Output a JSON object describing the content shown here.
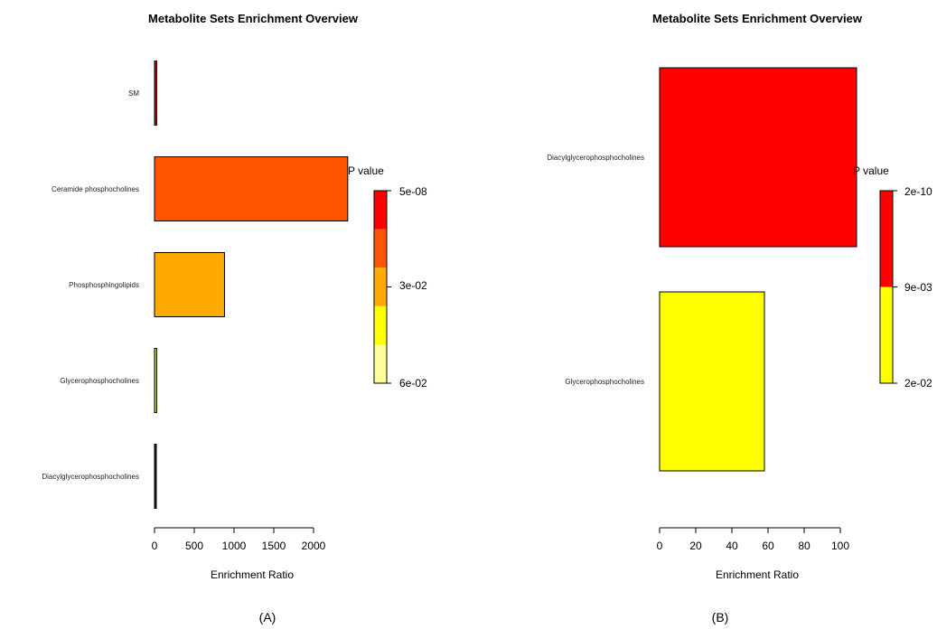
{
  "figure": {
    "panel_labels": [
      "(A)",
      "(B)"
    ]
  },
  "chart_data": [
    {
      "type": "bar",
      "orientation": "horizontal",
      "title": "Metabolite Sets Enrichment Overview",
      "xlabel": "Enrichment Ratio",
      "ylabel": "",
      "categories": [
        "SM",
        "Ceramide phosphocholines",
        "Phosphosphingolipids",
        "Glycerophosphocholines",
        "Diacylglycerophosphocholines"
      ],
      "values": [
        28,
        2430,
        880,
        28,
        5
      ],
      "bar_colors": [
        "#9b1111",
        "#ff5500",
        "#ffaa00",
        "#cccc22",
        "#222222"
      ],
      "xlim": [
        0,
        2400
      ],
      "xticks": [
        0,
        500,
        1000,
        1500,
        2000
      ],
      "xtick_labels": [
        "0",
        "500",
        "1000",
        "1500",
        "2000"
      ],
      "legend": {
        "title": "P value",
        "position": "right",
        "colors": [
          "#ff0000",
          "#ff5500",
          "#ffaa00",
          "#ffff00",
          "#ffff99"
        ],
        "labels": [
          "5e-08",
          "3e-02",
          "6e-02"
        ]
      }
    },
    {
      "type": "bar",
      "orientation": "horizontal",
      "title": "Metabolite Sets Enrichment Overview",
      "xlabel": "Enrichment Ratio",
      "ylabel": "",
      "categories": [
        "Diacylglycerophosphocholines",
        "Glycerophosphocholines"
      ],
      "values": [
        109,
        58
      ],
      "bar_colors": [
        "#ff0000",
        "#ffff00"
      ],
      "xlim": [
        0,
        100
      ],
      "xticks": [
        0,
        20,
        40,
        60,
        80,
        100
      ],
      "xtick_labels": [
        "0",
        "20",
        "40",
        "60",
        "80",
        "100"
      ],
      "legend": {
        "title": "P value",
        "position": "right",
        "colors": [
          "#ff0000",
          "#ffff00"
        ],
        "labels": [
          "2e-10",
          "9e-03",
          "2e-02"
        ]
      }
    }
  ]
}
